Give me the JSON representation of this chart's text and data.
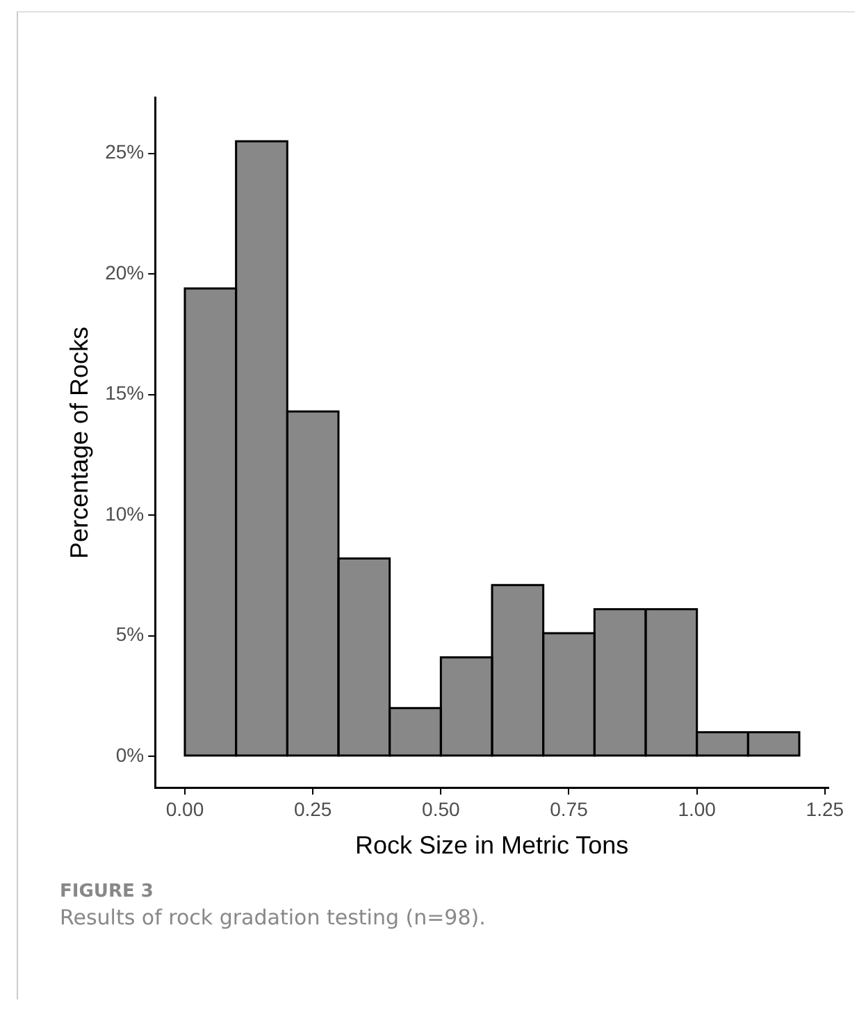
{
  "chart_data": {
    "type": "histogram",
    "xlabel": "Rock Size in Metric Tons",
    "ylabel": "Percentage of Rocks",
    "bins": [
      0,
      0.1,
      0.2,
      0.3,
      0.4,
      0.5,
      0.6,
      0.7,
      0.8,
      0.9,
      1.0,
      1.1,
      1.2
    ],
    "values": [
      19.4,
      25.5,
      14.3,
      8.2,
      2.0,
      4.1,
      7.1,
      5.1,
      6.1,
      6.1,
      1.0,
      1.0
    ],
    "color": "#888888",
    "xlim": [
      -0.058,
      1.257
    ],
    "xticks": [
      {
        "value": 0,
        "label": "0.00"
      },
      {
        "value": 0.25,
        "label": "0.25"
      },
      {
        "value": 0.5,
        "label": "0.50"
      },
      {
        "value": 0.75,
        "label": "0.75"
      },
      {
        "value": 1,
        "label": "1.00"
      },
      {
        "value": 1.25,
        "label": "1.25"
      }
    ],
    "ylim": [
      -1.3,
      27.3
    ],
    "yticks": [
      {
        "value": 0,
        "label": "0%"
      },
      {
        "value": 5,
        "label": "5%"
      },
      {
        "value": 10,
        "label": "10%"
      },
      {
        "value": 15,
        "label": "15%"
      },
      {
        "value": 20,
        "label": "20%"
      },
      {
        "value": 25,
        "label": "25%"
      }
    ],
    "grid": false,
    "legend": false,
    "annotations": [
      "FIGURE 3",
      "Results of rock gradation testing (n=98)."
    ]
  }
}
